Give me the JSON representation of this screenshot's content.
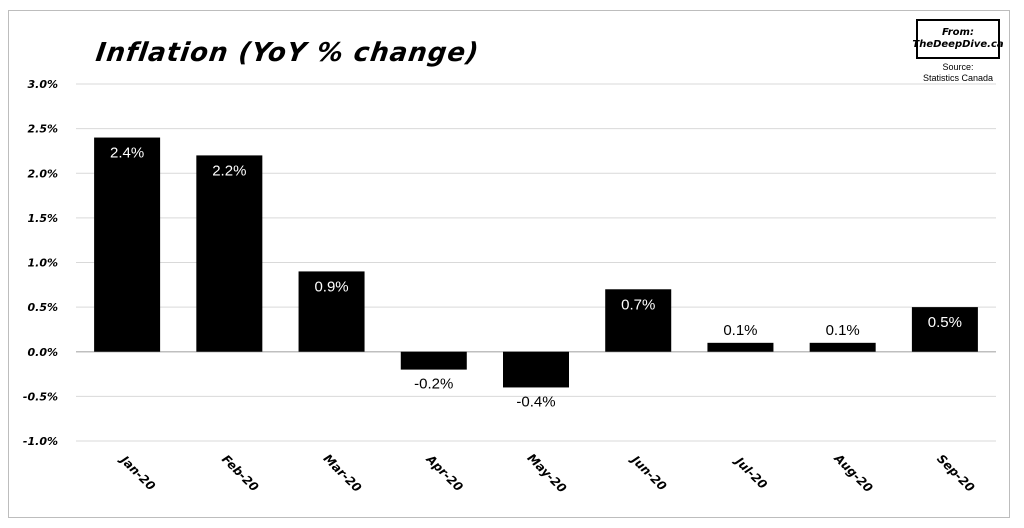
{
  "chart_data": {
    "type": "bar",
    "title": "Inflation (YoY % change)",
    "categories": [
      "Jan-20",
      "Feb-20",
      "Mar-20",
      "Apr-20",
      "May-20",
      "Jun-20",
      "Jul-20",
      "Aug-20",
      "Sep-20"
    ],
    "values": [
      2.4,
      2.2,
      0.9,
      -0.2,
      -0.4,
      0.7,
      0.1,
      0.1,
      0.5
    ],
    "data_labels": [
      "2.4%",
      "2.2%",
      "0.9%",
      "-0.2%",
      "-0.4%",
      "0.7%",
      "0.1%",
      "0.1%",
      "0.5%"
    ],
    "yticks": [
      3.0,
      2.5,
      2.0,
      1.5,
      1.0,
      0.5,
      0.0,
      -0.5,
      -1.0
    ],
    "ytick_labels": [
      "3.0%",
      "2.5%",
      "2.0%",
      "1.5%",
      "1.0%",
      "0.5%",
      "0.0%",
      "-0.5%",
      "-1.0%"
    ],
    "ylim": [
      -1.0,
      3.0
    ],
    "xlabel": "",
    "ylabel": "",
    "grid": true,
    "bar_color": "#000000",
    "grid_color": "#d9d9d9"
  },
  "branding": {
    "from": "From:",
    "site": "TheDeepDive.ca",
    "source_label": "Source:",
    "source_name": "Statistics Canada"
  }
}
